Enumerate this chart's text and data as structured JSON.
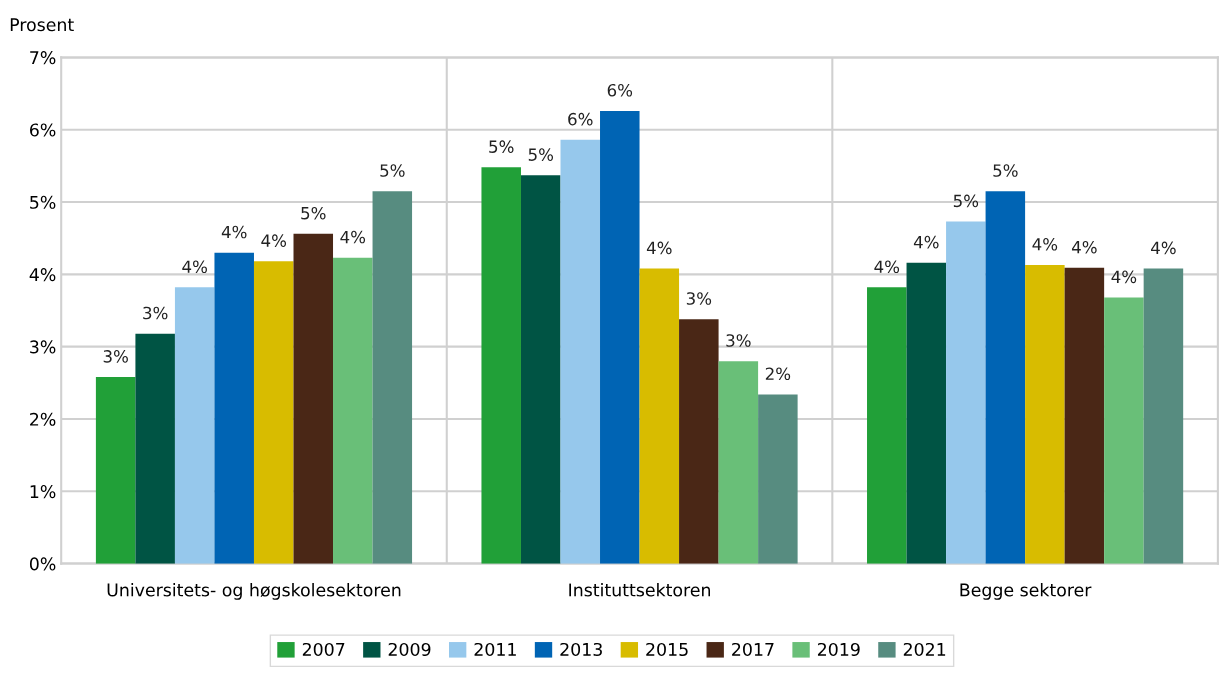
{
  "chart_data": {
    "type": "bar",
    "ylabel": "Prosent",
    "categories": [
      "Universitets- og høgskolesektoren",
      "Instituttsektoren",
      "Begge sektorer"
    ],
    "series": [
      {
        "name": "2007",
        "color": "#21a038",
        "values": [
          2.58,
          5.48,
          3.82
        ],
        "value_labels": [
          "3%",
          "5%",
          "4%"
        ]
      },
      {
        "name": "2009",
        "color": "#005444",
        "values": [
          3.18,
          5.37,
          4.16
        ],
        "value_labels": [
          "3%",
          "5%",
          "4%"
        ]
      },
      {
        "name": "2011",
        "color": "#96c8ec",
        "values": [
          3.82,
          5.86,
          4.73
        ],
        "value_labels": [
          "4%",
          "6%",
          "5%"
        ]
      },
      {
        "name": "2013",
        "color": "#0064b4",
        "values": [
          4.3,
          6.26,
          5.15
        ],
        "value_labels": [
          "4%",
          "6%",
          "5%"
        ]
      },
      {
        "name": "2015",
        "color": "#d8bc00",
        "values": [
          4.18,
          4.08,
          4.13
        ],
        "value_labels": [
          "4%",
          "4%",
          "4%"
        ]
      },
      {
        "name": "2017",
        "color": "#4a2716",
        "values": [
          4.56,
          3.38,
          4.09
        ],
        "value_labels": [
          "5%",
          "3%",
          "4%"
        ]
      },
      {
        "name": "2019",
        "color": "#69bf78",
        "values": [
          4.23,
          2.8,
          3.68
        ],
        "value_labels": [
          "4%",
          "3%",
          "4%"
        ]
      },
      {
        "name": "2021",
        "color": "#578c80",
        "values": [
          5.15,
          2.34,
          4.08
        ],
        "value_labels": [
          "5%",
          "2%",
          "4%"
        ]
      }
    ],
    "ylim": [
      0,
      7
    ],
    "yticks": [
      {
        "value": 0,
        "label": "0%"
      },
      {
        "value": 1,
        "label": "1%"
      },
      {
        "value": 2,
        "label": "2%"
      },
      {
        "value": 3,
        "label": "3%"
      },
      {
        "value": 4,
        "label": "4%"
      },
      {
        "value": 5,
        "label": "5%"
      },
      {
        "value": 6,
        "label": "6%"
      },
      {
        "value": 7,
        "label": "7%"
      }
    ],
    "grid": true,
    "legend": "bottom"
  }
}
